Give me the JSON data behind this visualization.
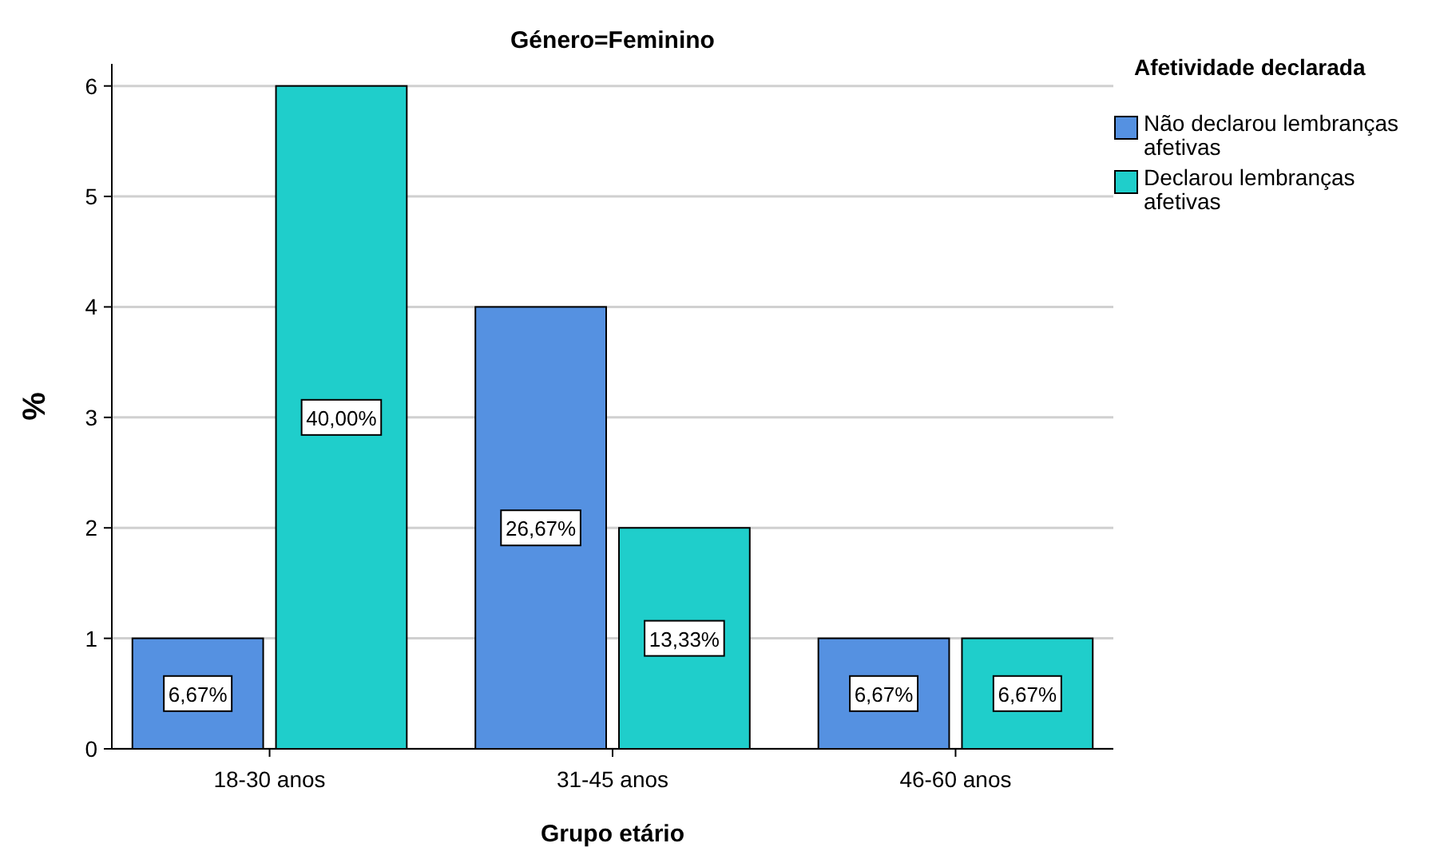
{
  "chart_data": {
    "type": "bar",
    "title": "Género=Feminino",
    "xlabel": "Grupo etário",
    "ylabel": "%",
    "legend_title": "Afetividade declarada",
    "categories": [
      "18-30 anos",
      "31-45 anos",
      "46-60 anos"
    ],
    "series": [
      {
        "name": "Não declarou lembranças afetivas",
        "color": "#5591e1",
        "values": [
          1,
          4,
          1
        ]
      },
      {
        "name": "Declarou lembranças afetivas",
        "color": "#1fcecb",
        "values": [
          6,
          2,
          1
        ]
      }
    ],
    "annotations": [
      {
        "text": "6,67%",
        "x": "18-30 anos",
        "y": 0.5
      },
      {
        "text": "40,00%",
        "x": "18-30 anos",
        "y": 3
      },
      {
        "text": "26,67%",
        "x": "31-45 anos",
        "y": 2
      },
      {
        "text": "13,33%",
        "x": "31-45 anos",
        "y": 1
      },
      {
        "text": "6,67%",
        "x": "46-60 anos",
        "y": 0.5
      },
      {
        "text": "6,67%",
        "x": "46-60 anos",
        "y": 0.5
      }
    ],
    "ylim": [
      0,
      6.2
    ],
    "yticks": [
      0,
      1,
      2,
      3,
      4,
      5,
      6
    ],
    "grid": "y",
    "legend": "top right"
  }
}
